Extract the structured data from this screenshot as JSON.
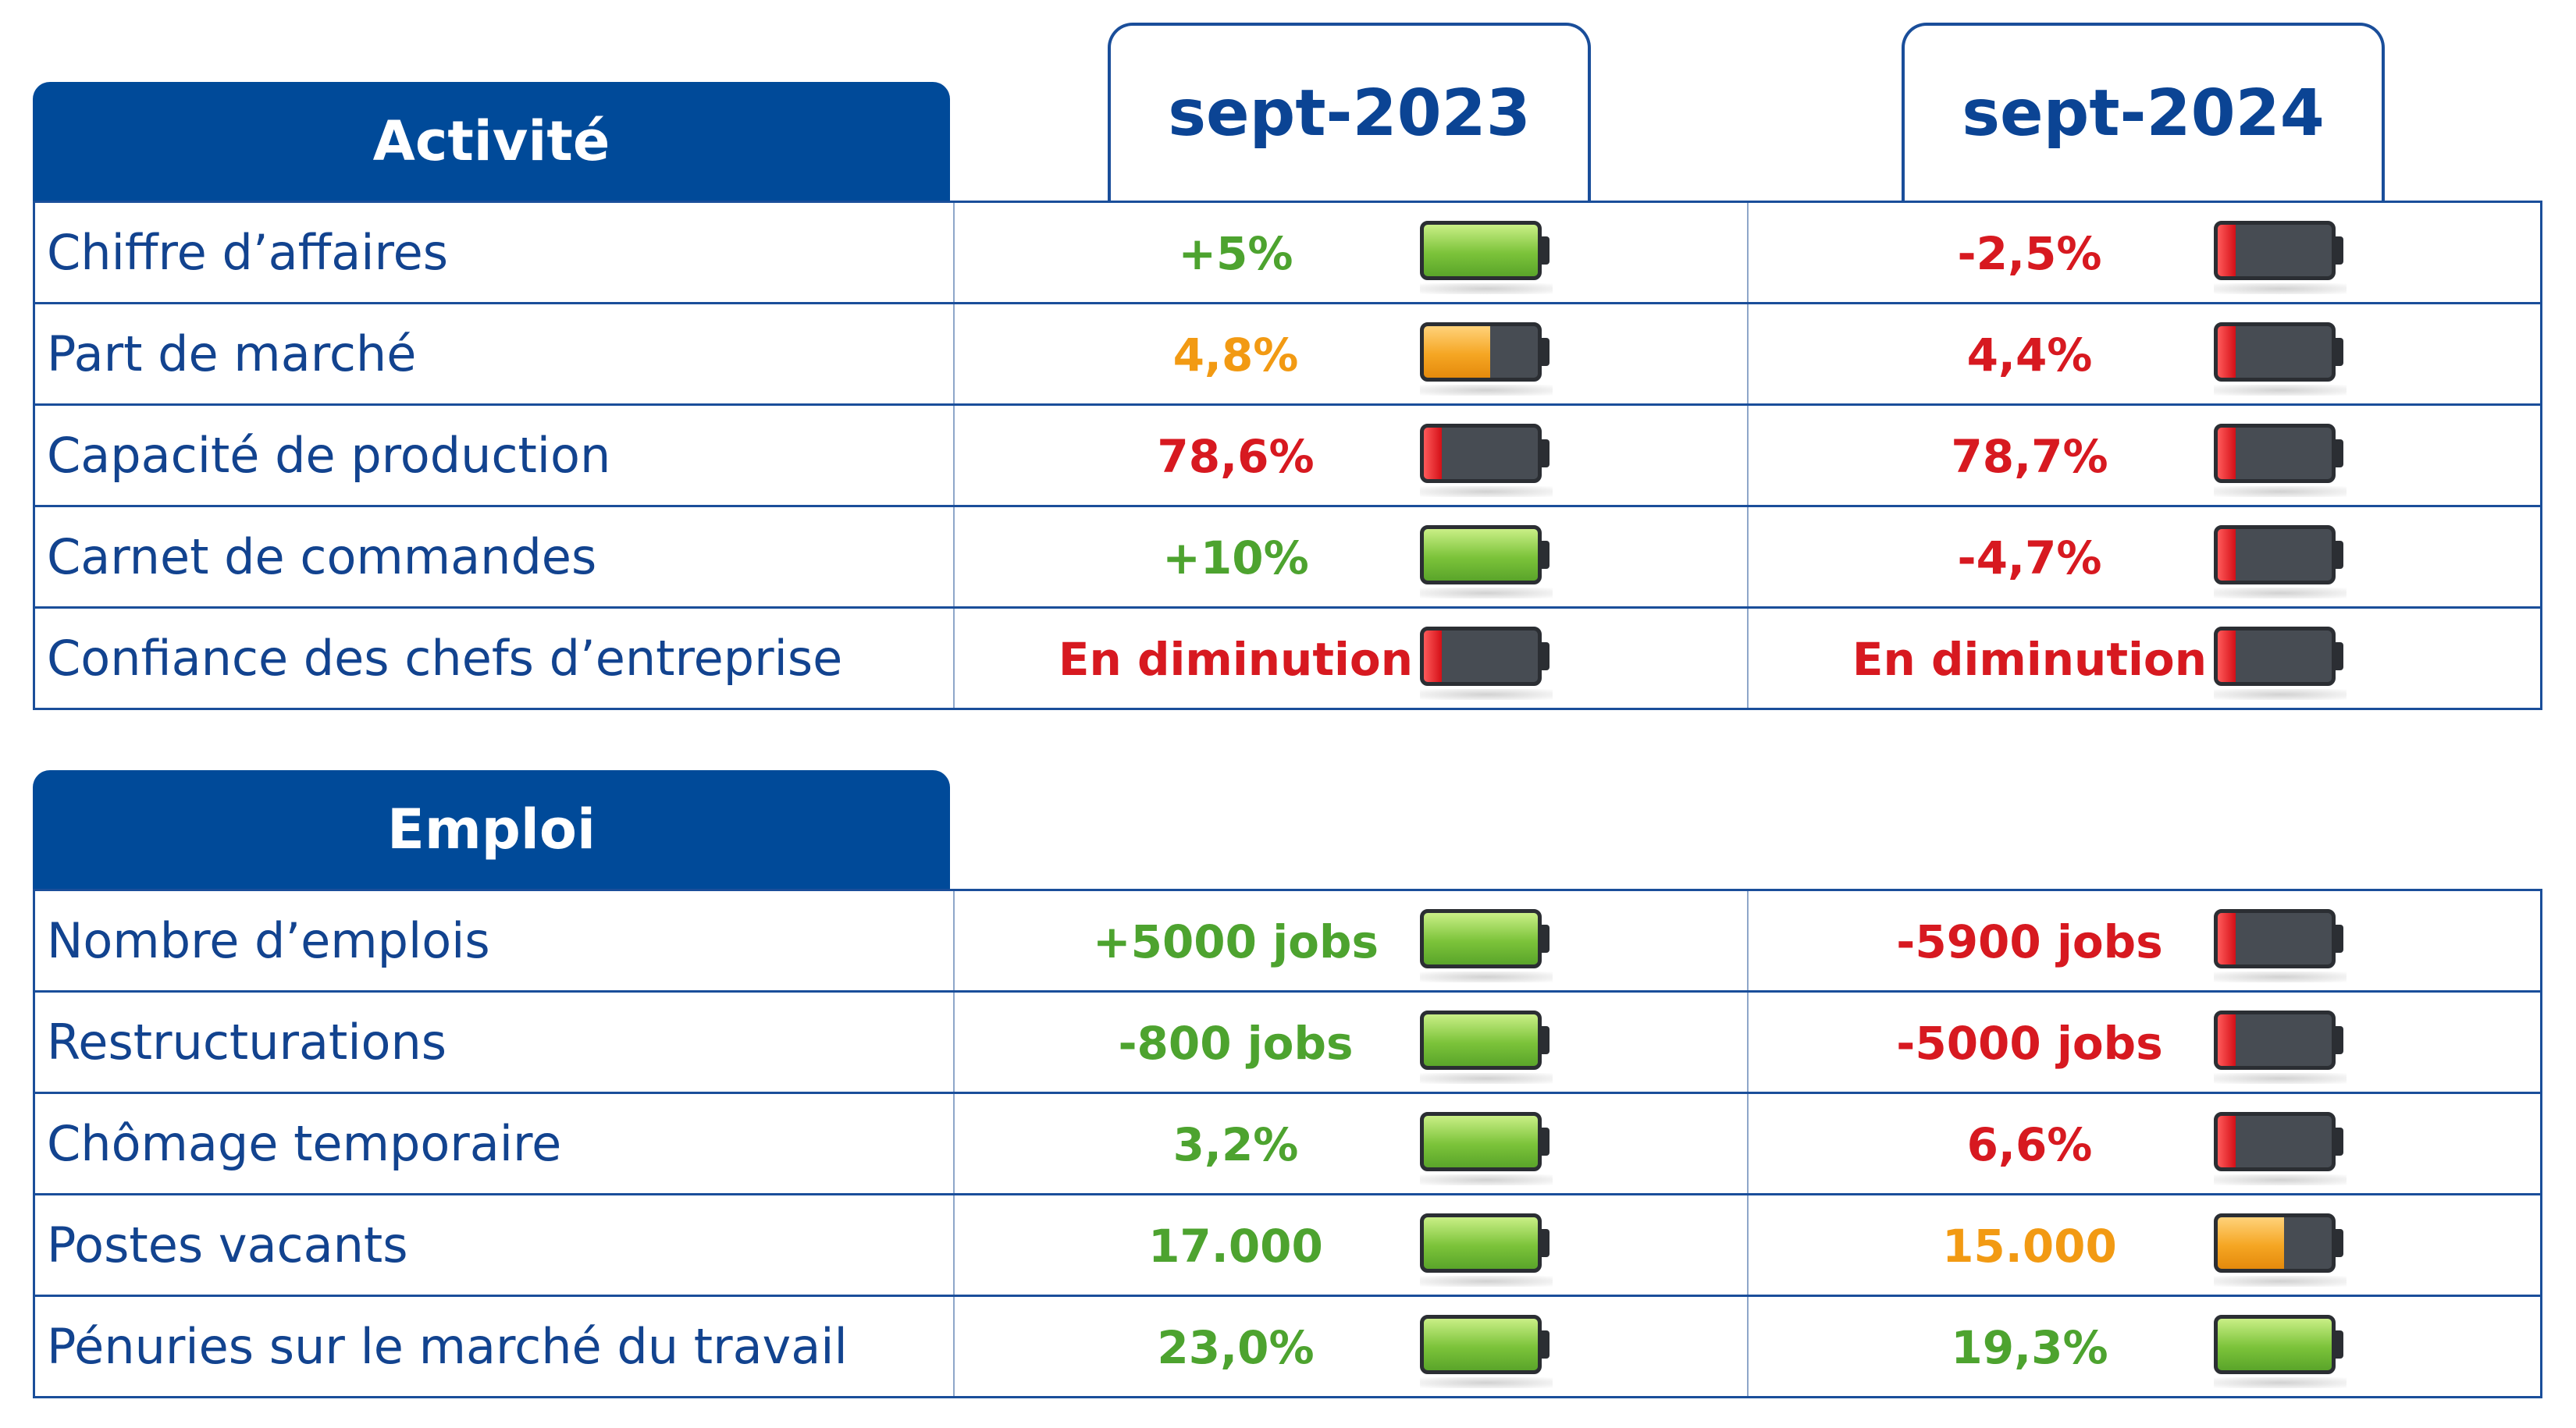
{
  "columns": [
    "sept-2023",
    "sept-2024"
  ],
  "sections": [
    {
      "title": "Activité",
      "rows": [
        {
          "label": "Chiffre d’affaires",
          "cells": [
            {
              "text": "+5%",
              "color": "#4da32f"
            },
            {
              "text": "-2,5%",
              "color": "#d71920"
            }
          ]
        },
        {
          "label": "Part de marché",
          "cells": [
            {
              "text": "4,8%",
              "color": "#f29a13"
            },
            {
              "text": "4,4%",
              "color": "#d71920"
            }
          ]
        },
        {
          "label": "Capacité de production",
          "cells": [
            {
              "text": "78,6%",
              "color": "#d71920"
            },
            {
              "text": "78,7%",
              "color": "#d71920"
            }
          ]
        },
        {
          "label": "Carnet de commandes",
          "cells": [
            {
              "text": "+10%",
              "color": "#4da32f"
            },
            {
              "text": "-4,7%",
              "color": "#d71920"
            }
          ]
        },
        {
          "label": "Confiance des chefs d’entreprise",
          "cells": [
            {
              "text": "En diminution",
              "color": "#d71920"
            },
            {
              "text": "En diminution",
              "color": "#d71920"
            }
          ]
        }
      ]
    },
    {
      "title": "Emploi",
      "rows": [
        {
          "label": "Nombre d’emplois",
          "cells": [
            {
              "text": "+5000 jobs",
              "color": "#4da32f"
            },
            {
              "text": "-5900 jobs",
              "color": "#d71920"
            }
          ]
        },
        {
          "label": "Restructurations",
          "cells": [
            {
              "text": "-800 jobs",
              "color": "#4da32f"
            },
            {
              "text": "-5000 jobs",
              "color": "#d71920"
            }
          ]
        },
        {
          "label": "Chômage temporaire",
          "cells": [
            {
              "text": "3,2%",
              "color": "#4da32f"
            },
            {
              "text": "6,6%",
              "color": "#d71920"
            }
          ]
        },
        {
          "label": "Postes vacants",
          "cells": [
            {
              "text": "17.000",
              "color": "#4da32f"
            },
            {
              "text": "15.000",
              "color": "#f29a13"
            }
          ]
        },
        {
          "label": "Pénuries sur le marché du travail",
          "cells": [
            {
              "text": "23,0%",
              "color": "#4da32f"
            },
            {
              "text": "19,3%",
              "color": "#4da32f"
            }
          ]
        }
      ]
    }
  ]
}
